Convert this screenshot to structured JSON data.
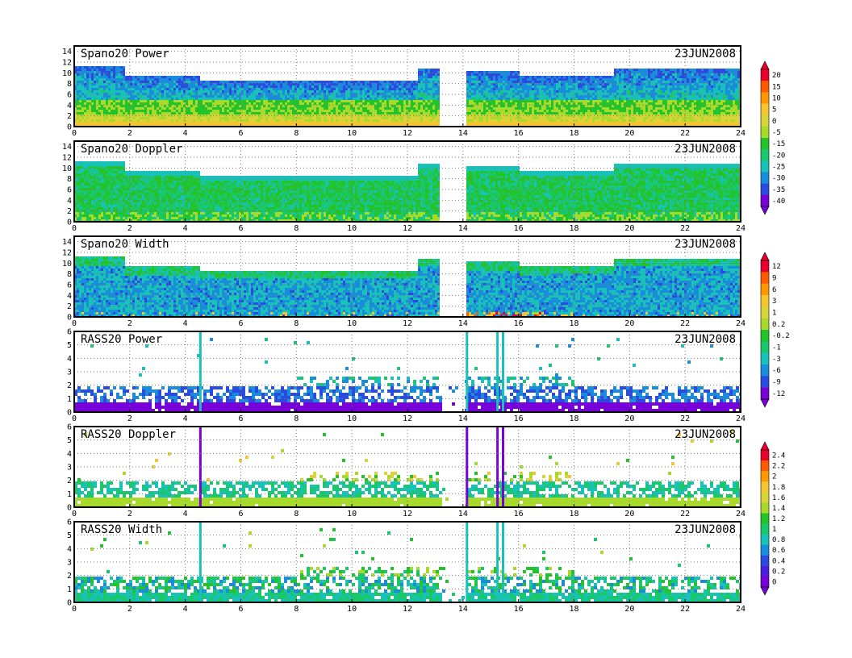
{
  "chart_data": [
    {
      "type": "heatmap",
      "title": "Spano20  Power",
      "date": "23JUN2008",
      "xlim": [
        0,
        24
      ],
      "ylim": [
        0,
        15
      ],
      "x_ticks": [
        "0",
        "2",
        "4",
        "6",
        "8",
        "10",
        "12",
        "14",
        "16",
        "18",
        "20",
        "22",
        "24"
      ],
      "y_ticks": [
        "0",
        "2",
        "4",
        "6",
        "8",
        "10",
        "12",
        "14"
      ],
      "top_height_km": [
        [
          0,
          11.5
        ],
        [
          1.8,
          9.5
        ],
        [
          4.5,
          8.7
        ],
        [
          8,
          8.6
        ],
        [
          12.3,
          11.2
        ],
        [
          13.1,
          0
        ],
        [
          14.1,
          10.5
        ],
        [
          16,
          9.5
        ],
        [
          17,
          9.7
        ],
        [
          19.4,
          11.2
        ],
        [
          24,
          10.5
        ]
      ],
      "grid": true,
      "colorscale": "scale_a"
    },
    {
      "type": "heatmap",
      "title": "Spano20  Doppler",
      "date": "23JUN2008",
      "xlim": [
        0,
        24
      ],
      "ylim": [
        0,
        15
      ],
      "x_ticks": [
        "0",
        "2",
        "4",
        "6",
        "8",
        "10",
        "12",
        "14",
        "16",
        "18",
        "20",
        "22",
        "24"
      ],
      "y_ticks": [
        "0",
        "2",
        "4",
        "6",
        "8",
        "10",
        "12",
        "14"
      ],
      "top_height_km": [
        [
          0,
          11.5
        ],
        [
          1.8,
          9.5
        ],
        [
          4.5,
          8.7
        ],
        [
          8,
          8.6
        ],
        [
          12.3,
          11.2
        ],
        [
          13.1,
          0
        ],
        [
          14.1,
          10.5
        ],
        [
          16,
          9.5
        ],
        [
          17,
          9.7
        ],
        [
          19.4,
          11.2
        ],
        [
          24,
          10.5
        ]
      ],
      "grid": true,
      "colorscale": "scale_a"
    },
    {
      "type": "heatmap",
      "title": "Spano20  Width",
      "date": "23JUN2008",
      "xlim": [
        0,
        24
      ],
      "ylim": [
        0,
        15
      ],
      "x_ticks": [
        "0",
        "2",
        "4",
        "6",
        "8",
        "10",
        "12",
        "14",
        "16",
        "18",
        "20",
        "22",
        "24"
      ],
      "y_ticks": [
        "0",
        "2",
        "4",
        "6",
        "8",
        "10",
        "12",
        "14"
      ],
      "top_height_km": [
        [
          0,
          11.5
        ],
        [
          1.8,
          9.5
        ],
        [
          4.5,
          8.7
        ],
        [
          8,
          8.6
        ],
        [
          12.3,
          11.2
        ],
        [
          13.1,
          0
        ],
        [
          14.1,
          10.5
        ],
        [
          16,
          9.5
        ],
        [
          17,
          9.7
        ],
        [
          19.4,
          11.2
        ],
        [
          24,
          10.5
        ]
      ],
      "grid": true,
      "colorscale": "scale_b"
    },
    {
      "type": "heatmap",
      "title": "RASS20  Power",
      "date": "23JUN2008",
      "xlim": [
        0,
        24
      ],
      "ylim": [
        0,
        6
      ],
      "x_ticks": [
        "0",
        "2",
        "4",
        "6",
        "8",
        "10",
        "12",
        "14",
        "16",
        "18",
        "20",
        "22",
        "24"
      ],
      "y_ticks": [
        "0",
        "1",
        "2",
        "3",
        "4",
        "5",
        "6"
      ],
      "spikes_hours": [
        4.5,
        14.1,
        15.2,
        15.4
      ],
      "grid": true,
      "colorscale": "scale_b"
    },
    {
      "type": "heatmap",
      "title": "RASS20  Doppler",
      "date": "23JUN2008",
      "xlim": [
        0,
        24
      ],
      "ylim": [
        0,
        6
      ],
      "x_ticks": [
        "0",
        "2",
        "4",
        "6",
        "8",
        "10",
        "12",
        "14",
        "16",
        "18",
        "20",
        "22",
        "24"
      ],
      "y_ticks": [
        "0",
        "1",
        "2",
        "3",
        "4",
        "5",
        "6"
      ],
      "spikes_hours": [
        4.5,
        14.1,
        15.2,
        15.4
      ],
      "grid": true,
      "colorscale": "scale_c"
    },
    {
      "type": "heatmap",
      "title": "RASS20  Width",
      "date": "23JUN2008",
      "xlim": [
        0,
        24
      ],
      "ylim": [
        0,
        6
      ],
      "x_ticks": [
        "0",
        "2",
        "4",
        "6",
        "8",
        "10",
        "12",
        "14",
        "16",
        "18",
        "20",
        "22",
        "24"
      ],
      "y_ticks": [
        "0",
        "1",
        "2",
        "3",
        "4",
        "5",
        "6"
      ],
      "spikes_hours": [
        4.5,
        14.1,
        15.2,
        15.4
      ],
      "grid": true,
      "colorscale": "scale_c"
    }
  ],
  "colorbars": [
    {
      "id": "scale_a",
      "labels": [
        "20",
        "15",
        "10",
        "5",
        "0",
        "-5",
        "-15",
        "-20",
        "-25",
        "-30",
        "-35",
        "-40"
      ],
      "colors": [
        "#e8002a",
        "#ff5a00",
        "#ff9800",
        "#f4c531",
        "#d8d43a",
        "#a8da2c",
        "#22c42a",
        "#18c86a",
        "#18c2b8",
        "#1a8cdc",
        "#2a4ae0",
        "#7800d8"
      ]
    },
    {
      "id": "scale_b",
      "labels": [
        "12",
        "9",
        "6",
        "3",
        "1",
        "0.2",
        "-0.2",
        "-1",
        "-3",
        "-6",
        "-9",
        "-12"
      ],
      "colors": [
        "#e8002a",
        "#ff5a00",
        "#ff9800",
        "#f4c531",
        "#d8d43a",
        "#a8da2c",
        "#22c42a",
        "#18c86a",
        "#18c2b8",
        "#1a8cdc",
        "#2a4ae0",
        "#7800d8"
      ]
    },
    {
      "id": "scale_c",
      "labels": [
        "2.4",
        "2.2",
        "2",
        "1.8",
        "1.6",
        "1.4",
        "1.2",
        "1",
        "0.8",
        "0.6",
        "0.4",
        "0.2",
        "0"
      ],
      "colors": [
        "#e8002a",
        "#ff5a00",
        "#ff9800",
        "#f4c531",
        "#d8d43a",
        "#a8da2c",
        "#22c42a",
        "#18c86a",
        "#18c2b8",
        "#1a8cdc",
        "#2a4ae0",
        "#4a1ee0",
        "#7800d8"
      ]
    }
  ]
}
